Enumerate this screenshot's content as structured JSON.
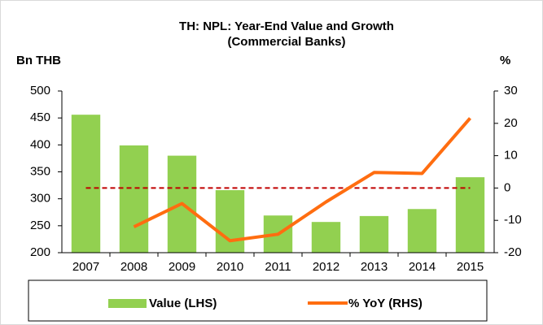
{
  "chart_data": {
    "type": "bar_line",
    "title": [
      "TH: NPL: Year-End Value and Growth",
      "(Commercial Banks)"
    ],
    "y_label": "Bn THB",
    "y2_label": "%",
    "categories": [
      "2007",
      "2008",
      "2009",
      "2010",
      "2011",
      "2012",
      "2013",
      "2014",
      "2015"
    ],
    "series": [
      {
        "name": "Value (LHS)",
        "type": "bar",
        "color": "#92d050",
        "axis": "y",
        "values": [
          456,
          399,
          380,
          316,
          269,
          257,
          268,
          281,
          340
        ]
      },
      {
        "name": "% YoY (RHS)",
        "type": "line",
        "color": "#ff6d10",
        "axis": "y2",
        "values": [
          null,
          -12,
          -4.8,
          -16.3,
          -14.3,
          -4.3,
          4.8,
          4.5,
          21.6
        ]
      }
    ],
    "reference_line": {
      "value": 0,
      "axis": "y2",
      "color": "#c00000"
    },
    "ylim": [
      200,
      500
    ],
    "yticks": [
      200,
      250,
      300,
      350,
      400,
      450,
      500
    ],
    "y2lim": [
      -20,
      30
    ],
    "y2ticks": [
      -20,
      -10,
      0,
      10,
      20,
      30
    ],
    "legend": "bottom"
  }
}
